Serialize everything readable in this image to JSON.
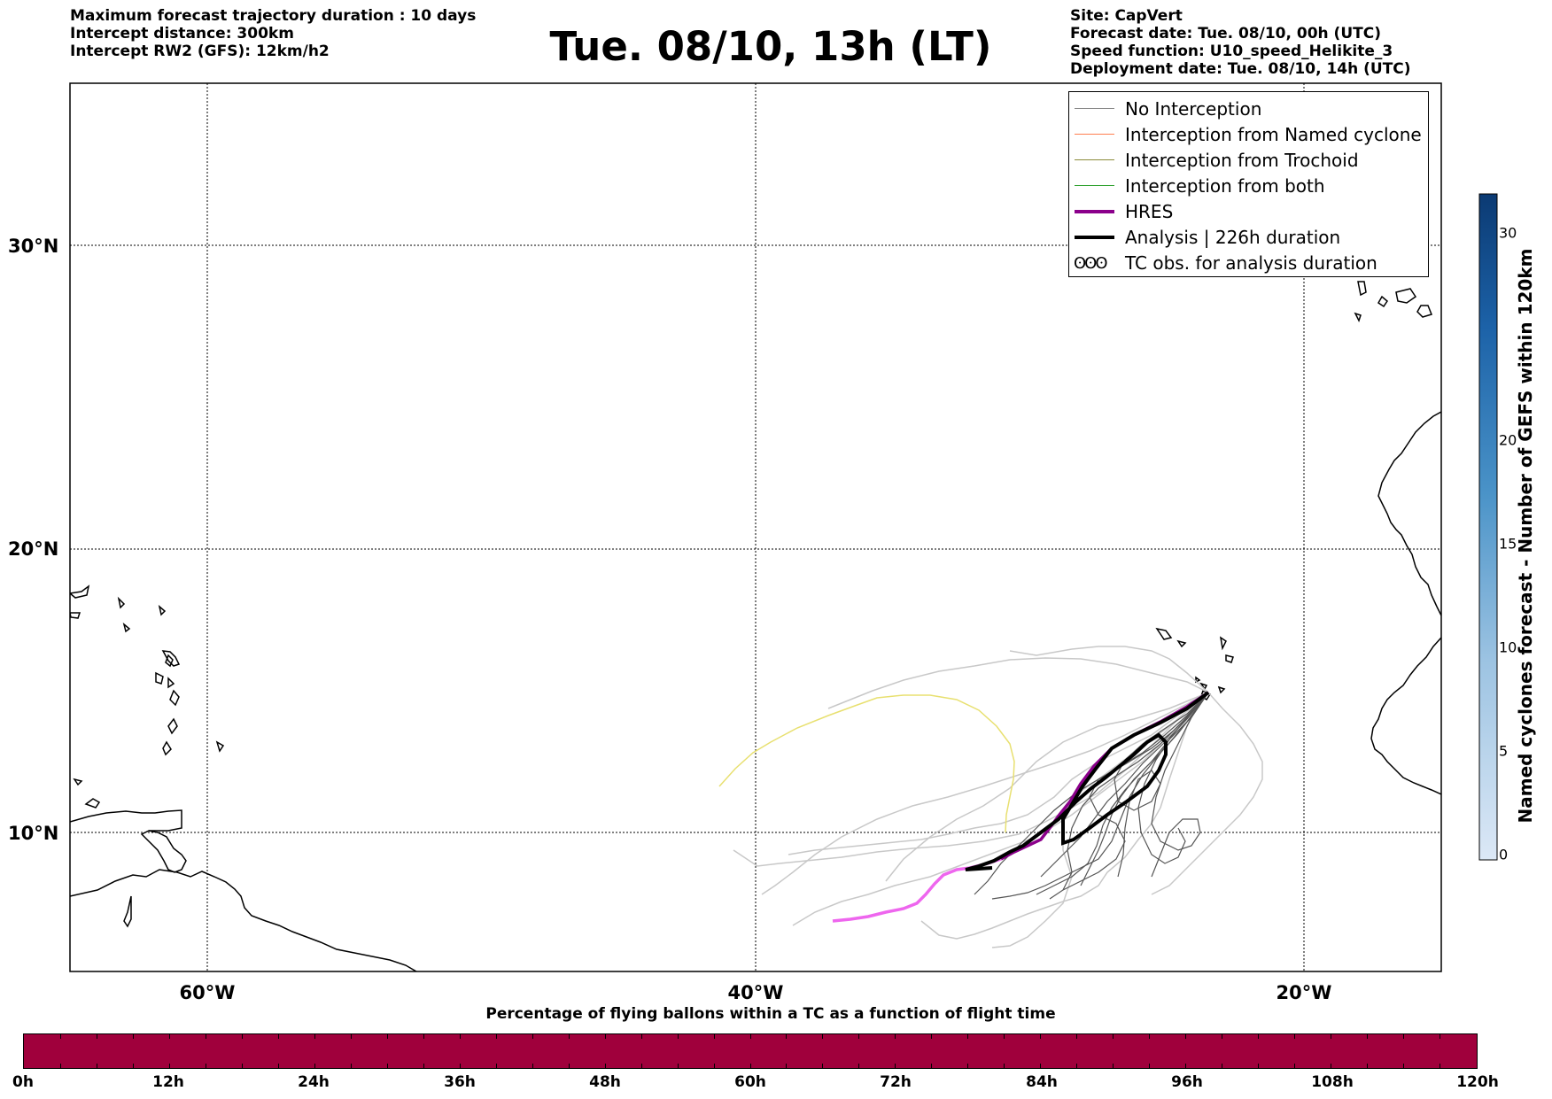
{
  "header_left": {
    "line1": "Maximum forecast trajectory duration : 10 days",
    "line2": "Intercept distance: 300km",
    "line3": "Intercept RW2 (GFS):  12km/h2"
  },
  "header_right": {
    "line1": "Site: CapVert",
    "line2": "Forecast date: Tue. 08/10, 00h (UTC)",
    "line3": "Speed function: U10_speed_Helikite_3",
    "line4": "Deployment date: Tue. 08/10, 14h (UTC)"
  },
  "title": "Tue. 08/10, 13h (LT)",
  "map": {
    "lat_labels": [
      "30°N",
      "20°N",
      "10°N"
    ],
    "lon_labels": [
      "60°W",
      "40°W",
      "20°W"
    ],
    "lon_range": [
      -65,
      -15
    ],
    "lat_range": [
      5.5,
      34.7
    ]
  },
  "legend": {
    "items": [
      {
        "label": "No Interception",
        "color": "#888888"
      },
      {
        "label": "Interception from Named cyclone",
        "color": "#ff7f50"
      },
      {
        "label": "Interception from Trochoid",
        "color": "#8b8b3a"
      },
      {
        "label": "Interception from both",
        "color": "#2ca02c"
      },
      {
        "label": "HRES",
        "color": "#8b008b"
      },
      {
        "label": "Analysis | 226h duration",
        "color": "#000000"
      },
      {
        "label": "TC obs. for analysis duration",
        "color": "#000000",
        "symbol": "ʘʘʘ"
      }
    ]
  },
  "colorbar_bottom": {
    "title": "Percentage of flying ballons within a TC as a function of flight time",
    "ticks": [
      "0h",
      "12h",
      "24h",
      "36h",
      "48h",
      "60h",
      "72h",
      "84h",
      "96h",
      "108h",
      "120h"
    ],
    "fill_color": "#a0003c"
  },
  "colorbar_right": {
    "title": "Named cyclones forecast - Number of GEFS within 120km",
    "ticks": [
      "0",
      "5",
      "10",
      "15",
      "20",
      "30"
    ],
    "range": [
      0,
      32
    ]
  }
}
